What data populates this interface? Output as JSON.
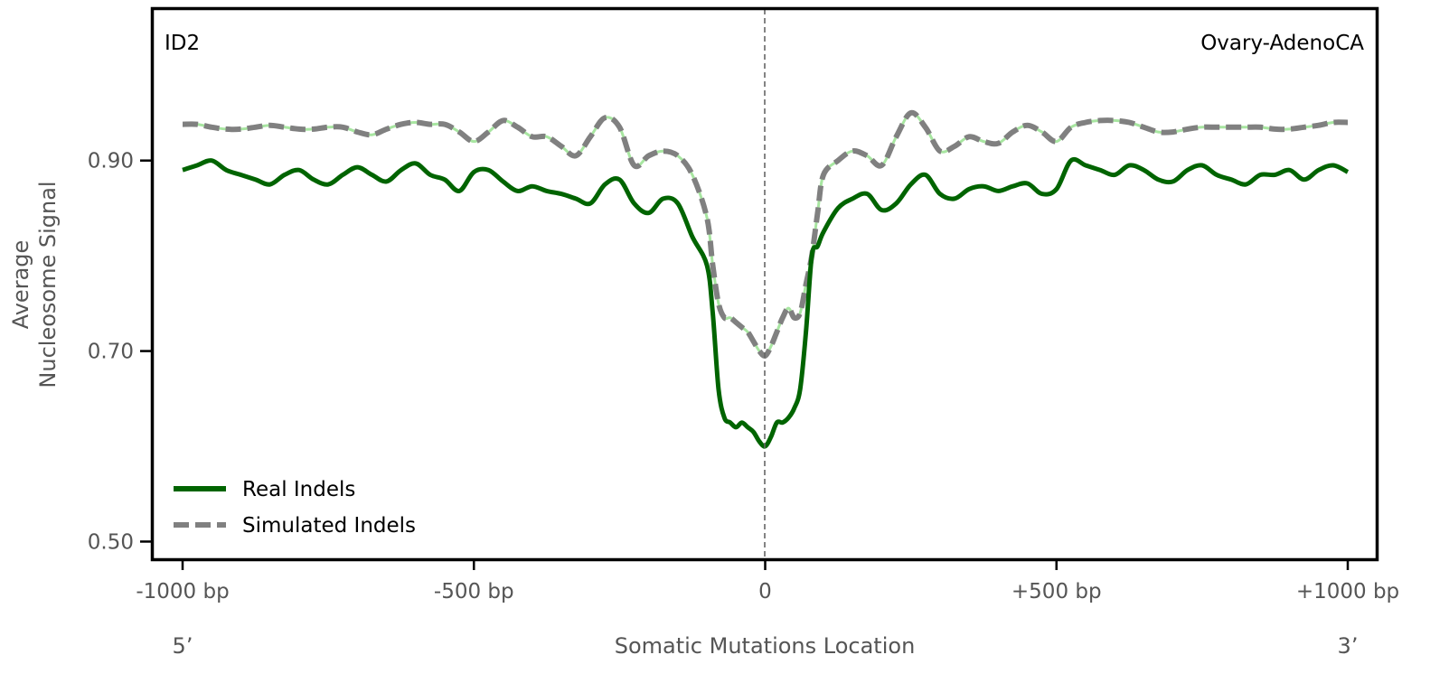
{
  "chart_data": {
    "type": "line",
    "panel_label": "ID2",
    "cancer_type": "Ovary-AdenoCA",
    "xlabel": "Somatic Mutations Location",
    "ylabel_line1": "Average",
    "ylabel_line2": "Nucleosome Signal",
    "five_prime_label": "5’",
    "three_prime_label": "3’",
    "xlim": [
      -1000,
      1000
    ],
    "ylim": [
      0.49,
      1.06
    ],
    "x_ticks": [
      {
        "value": -1000,
        "label": "-1000 bp"
      },
      {
        "value": -500,
        "label": "-500 bp"
      },
      {
        "value": 0,
        "label": "0"
      },
      {
        "value": 500,
        "label": "+500 bp"
      },
      {
        "value": 1000,
        "label": "+1000 bp"
      }
    ],
    "y_ticks": [
      {
        "value": 0.5,
        "label": "0.50"
      },
      {
        "value": 0.7,
        "label": "0.70"
      },
      {
        "value": 0.9,
        "label": "0.90"
      }
    ],
    "center_line": 0,
    "grid": false,
    "legend_position": "lower-left",
    "series": [
      {
        "name": "Real Indels",
        "color": "#006400",
        "style": "solid",
        "x": [
          -1000,
          -975,
          -950,
          -925,
          -900,
          -875,
          -850,
          -825,
          -800,
          -775,
          -750,
          -725,
          -700,
          -675,
          -650,
          -625,
          -600,
          -575,
          -550,
          -525,
          -500,
          -475,
          -450,
          -425,
          -400,
          -375,
          -350,
          -325,
          -300,
          -275,
          -250,
          -225,
          -200,
          -175,
          -150,
          -125,
          -100,
          -90,
          -80,
          -70,
          -60,
          -50,
          -40,
          -30,
          -20,
          -10,
          0,
          10,
          20,
          30,
          40,
          50,
          60,
          70,
          80,
          90,
          100,
          125,
          150,
          175,
          200,
          225,
          250,
          275,
          300,
          325,
          350,
          375,
          400,
          425,
          450,
          475,
          500,
          525,
          550,
          575,
          600,
          625,
          650,
          675,
          700,
          725,
          750,
          775,
          800,
          825,
          850,
          875,
          900,
          925,
          950,
          975,
          1000
        ],
        "y": [
          0.89,
          0.895,
          0.9,
          0.89,
          0.885,
          0.88,
          0.875,
          0.885,
          0.89,
          0.88,
          0.875,
          0.885,
          0.893,
          0.885,
          0.878,
          0.89,
          0.897,
          0.885,
          0.88,
          0.868,
          0.888,
          0.89,
          0.878,
          0.868,
          0.873,
          0.868,
          0.865,
          0.86,
          0.855,
          0.875,
          0.88,
          0.855,
          0.845,
          0.86,
          0.855,
          0.82,
          0.79,
          0.74,
          0.66,
          0.63,
          0.625,
          0.62,
          0.625,
          0.62,
          0.615,
          0.605,
          0.6,
          0.61,
          0.625,
          0.625,
          0.63,
          0.64,
          0.66,
          0.72,
          0.8,
          0.81,
          0.825,
          0.85,
          0.86,
          0.865,
          0.848,
          0.855,
          0.875,
          0.885,
          0.865,
          0.86,
          0.87,
          0.873,
          0.868,
          0.873,
          0.876,
          0.865,
          0.87,
          0.9,
          0.895,
          0.89,
          0.885,
          0.895,
          0.89,
          0.88,
          0.878,
          0.89,
          0.895,
          0.885,
          0.88,
          0.875,
          0.885,
          0.885,
          0.89,
          0.88,
          0.89,
          0.895,
          0.888
        ]
      },
      {
        "name": "Simulated Indels",
        "color": "#808080",
        "highlight_color": "#a8e6a1",
        "style": "dashed",
        "x": [
          -1000,
          -975,
          -950,
          -925,
          -900,
          -875,
          -850,
          -825,
          -800,
          -775,
          -750,
          -725,
          -700,
          -675,
          -650,
          -625,
          -600,
          -575,
          -550,
          -525,
          -500,
          -475,
          -450,
          -425,
          -400,
          -375,
          -350,
          -325,
          -300,
          -275,
          -250,
          -225,
          -200,
          -175,
          -150,
          -125,
          -100,
          -90,
          -80,
          -70,
          -60,
          -50,
          -40,
          -30,
          -20,
          -10,
          0,
          10,
          20,
          30,
          40,
          50,
          60,
          70,
          80,
          90,
          100,
          125,
          150,
          175,
          200,
          225,
          250,
          275,
          300,
          325,
          350,
          375,
          400,
          425,
          450,
          475,
          500,
          525,
          550,
          575,
          600,
          625,
          650,
          675,
          700,
          725,
          750,
          775,
          800,
          825,
          850,
          875,
          900,
          925,
          950,
          975,
          1000
        ],
        "y": [
          0.938,
          0.938,
          0.935,
          0.933,
          0.933,
          0.935,
          0.937,
          0.935,
          0.933,
          0.933,
          0.935,
          0.935,
          0.93,
          0.927,
          0.933,
          0.938,
          0.94,
          0.938,
          0.938,
          0.93,
          0.92,
          0.93,
          0.942,
          0.935,
          0.925,
          0.925,
          0.915,
          0.905,
          0.925,
          0.945,
          0.935,
          0.895,
          0.905,
          0.91,
          0.905,
          0.885,
          0.84,
          0.79,
          0.75,
          0.735,
          0.735,
          0.73,
          0.725,
          0.72,
          0.71,
          0.7,
          0.695,
          0.705,
          0.72,
          0.735,
          0.745,
          0.735,
          0.74,
          0.77,
          0.8,
          0.845,
          0.885,
          0.9,
          0.91,
          0.905,
          0.895,
          0.925,
          0.95,
          0.935,
          0.91,
          0.915,
          0.925,
          0.92,
          0.918,
          0.93,
          0.937,
          0.93,
          0.92,
          0.935,
          0.94,
          0.942,
          0.942,
          0.94,
          0.935,
          0.93,
          0.93,
          0.933,
          0.935,
          0.935,
          0.935,
          0.935,
          0.935,
          0.933,
          0.933,
          0.935,
          0.937,
          0.94,
          0.94
        ]
      }
    ]
  }
}
